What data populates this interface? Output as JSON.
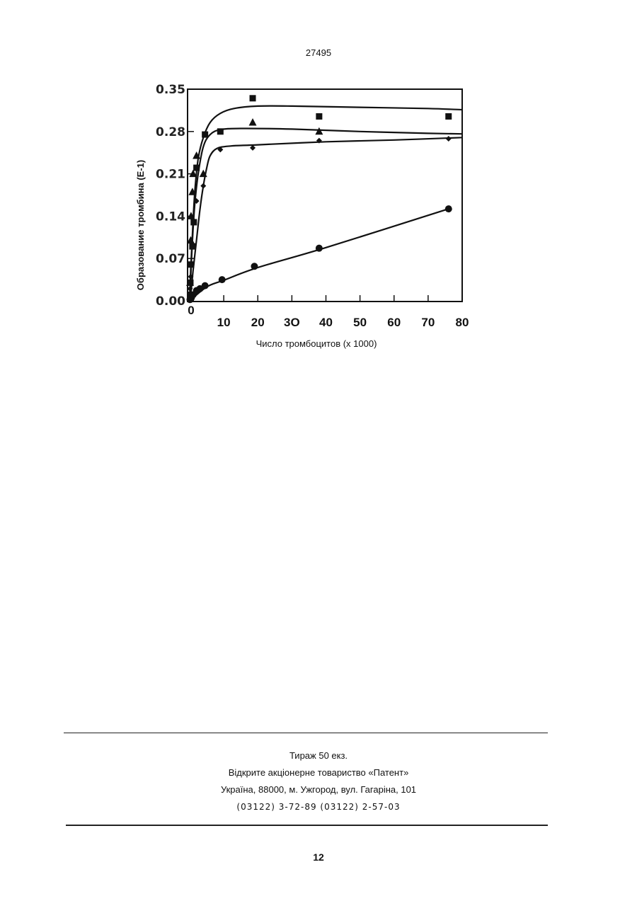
{
  "header": {
    "doc_number": "27495"
  },
  "chart_data": {
    "type": "line",
    "title": "",
    "xlabel": "Число тромбоцитов (x 1000)",
    "ylabel": "Образование тромбина (Е-1)",
    "xlim": [
      0,
      80
    ],
    "ylim": [
      0,
      0.35
    ],
    "x_ticks": [
      {
        "value": 0,
        "label": "0"
      },
      {
        "value": 10,
        "label": "10"
      },
      {
        "value": 20,
        "label": "20"
      },
      {
        "value": 30,
        "label": "3O"
      },
      {
        "value": 40,
        "label": "40"
      },
      {
        "value": 50,
        "label": "50"
      },
      {
        "value": 60,
        "label": "60"
      },
      {
        "value": 70,
        "label": "70"
      },
      {
        "value": 80,
        "label": "80"
      }
    ],
    "y_ticks": [
      {
        "value": 0,
        "label": "0.00"
      },
      {
        "value": 0.07,
        "label": "0.07"
      },
      {
        "value": 0.14,
        "label": "0.14"
      },
      {
        "value": 0.21,
        "label": "0.21"
      },
      {
        "value": 0.28,
        "label": "0.28"
      },
      {
        "value": 0.35,
        "label": "0.35"
      }
    ],
    "grid": false,
    "legend": "none",
    "series": [
      {
        "marker": "square",
        "points": [
          [
            0.1,
            0.01
          ],
          [
            0.2,
            0.03
          ],
          [
            0.4,
            0.06
          ],
          [
            0.8,
            0.09
          ],
          [
            1.2,
            0.13
          ],
          [
            2,
            0.22
          ],
          [
            4.5,
            0.275
          ],
          [
            9,
            0.28
          ],
          [
            18.5,
            0.335
          ],
          [
            38,
            0.305
          ],
          [
            76,
            0.305
          ]
        ],
        "curve": [
          [
            0,
            0
          ],
          [
            0.3,
            0.05
          ],
          [
            0.8,
            0.11
          ],
          [
            1.5,
            0.18
          ],
          [
            2.5,
            0.235
          ],
          [
            4,
            0.27
          ],
          [
            6,
            0.295
          ],
          [
            9,
            0.31
          ],
          [
            13,
            0.318
          ],
          [
            20,
            0.322
          ],
          [
            30,
            0.322
          ],
          [
            50,
            0.32
          ],
          [
            70,
            0.318
          ],
          [
            80,
            0.316
          ]
        ]
      },
      {
        "marker": "triangle",
        "points": [
          [
            0.1,
            0.03
          ],
          [
            0.3,
            0.1
          ],
          [
            0.4,
            0.14
          ],
          [
            0.8,
            0.18
          ],
          [
            1,
            0.21
          ],
          [
            2,
            0.24
          ],
          [
            4,
            0.21
          ],
          [
            18.5,
            0.295
          ],
          [
            38,
            0.28
          ]
        ],
        "curve": [
          [
            0,
            0
          ],
          [
            0.3,
            0.04
          ],
          [
            0.8,
            0.1
          ],
          [
            1.5,
            0.16
          ],
          [
            2.5,
            0.21
          ],
          [
            4,
            0.255
          ],
          [
            6,
            0.275
          ],
          [
            9,
            0.283
          ],
          [
            15,
            0.285
          ],
          [
            30,
            0.284
          ],
          [
            50,
            0.28
          ],
          [
            70,
            0.277
          ],
          [
            80,
            0.276
          ]
        ]
      },
      {
        "marker": "diamond",
        "points": [
          [
            0.1,
            0.02
          ],
          [
            0.3,
            0.04
          ],
          [
            0.6,
            0.06
          ],
          [
            0.9,
            0.09
          ],
          [
            2,
            0.165
          ],
          [
            4,
            0.19
          ],
          [
            9,
            0.25
          ],
          [
            18.5,
            0.253
          ],
          [
            38,
            0.265
          ],
          [
            76,
            0.268
          ]
        ],
        "curve": [
          [
            0,
            0
          ],
          [
            0.5,
            0.02
          ],
          [
            1,
            0.05
          ],
          [
            2,
            0.1
          ],
          [
            3,
            0.15
          ],
          [
            4,
            0.19
          ],
          [
            5,
            0.22
          ],
          [
            6,
            0.24
          ],
          [
            8,
            0.252
          ],
          [
            12,
            0.256
          ],
          [
            20,
            0.258
          ],
          [
            40,
            0.263
          ],
          [
            60,
            0.266
          ],
          [
            80,
            0.27
          ]
        ]
      },
      {
        "marker": "circle",
        "points": [
          [
            0.1,
            0.002
          ],
          [
            0.5,
            0.005
          ],
          [
            1,
            0.01
          ],
          [
            2,
            0.017
          ],
          [
            3,
            0.02
          ],
          [
            4.5,
            0.025
          ],
          [
            9.5,
            0.035
          ],
          [
            19,
            0.057
          ],
          [
            38,
            0.087
          ],
          [
            76,
            0.152
          ]
        ],
        "curve": [
          [
            0,
            0
          ],
          [
            5,
            0.023
          ],
          [
            10,
            0.034
          ],
          [
            20,
            0.055
          ],
          [
            40,
            0.088
          ],
          [
            76,
            0.152
          ]
        ]
      }
    ]
  },
  "footer": {
    "circulation": "Тираж 50 екз.",
    "publisher": "Відкрите акціонерне товариство «Патент»",
    "address": "Україна, 88000, м. Ужгород, вул. Гагаріна, 101",
    "phones": "(03122) 3-72-89 (03122) 2-57-03",
    "page_number": "12"
  }
}
